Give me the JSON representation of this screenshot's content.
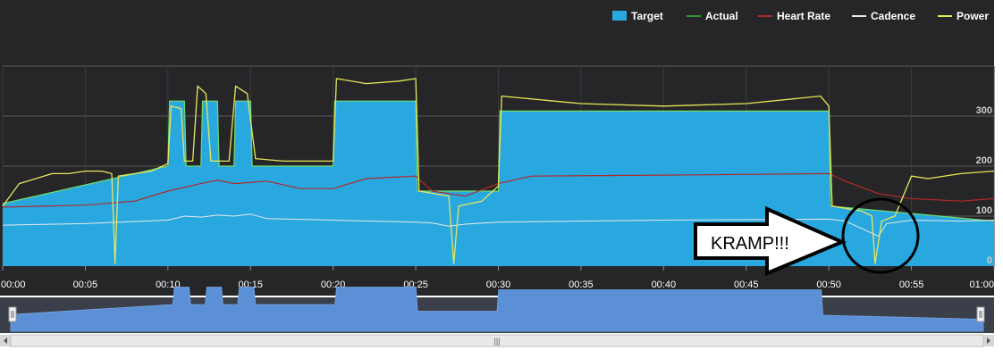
{
  "chart_data": {
    "type": "line",
    "legend": {
      "placement": "top-right",
      "entries": [
        {
          "name": "Target",
          "color": "#29a8e0",
          "style": "box"
        },
        {
          "name": "Actual",
          "color": "#2e9a2e",
          "style": "line"
        },
        {
          "name": "Heart Rate",
          "color": "#b02a2a",
          "style": "line"
        },
        {
          "name": "Cadence",
          "color": "#e8e8e8",
          "style": "line"
        },
        {
          "name": "Power",
          "color": "#e6e65a",
          "style": "line"
        }
      ]
    },
    "x_ticks": [
      "00:00",
      "00:05",
      "00:10",
      "00:15",
      "00:20",
      "00:25",
      "00:30",
      "00:35",
      "00:40",
      "00:45",
      "00:50",
      "00:55",
      "01:00"
    ],
    "xlim": [
      0,
      60
    ],
    "y_ticks": [
      {
        "value": 0,
        "label": "0"
      },
      {
        "value": 100,
        "label": "100"
      },
      {
        "value": 200,
        "label": "200"
      },
      {
        "value": 300,
        "label": "300"
      }
    ],
    "ylim": [
      0,
      400
    ],
    "grid": true,
    "target_series": {
      "name": "Target",
      "points": [
        [
          0,
          125
        ],
        [
          10,
          200
        ],
        [
          10,
          200
        ],
        [
          10.1,
          330
        ],
        [
          11,
          330
        ],
        [
          11.1,
          200
        ],
        [
          12,
          200
        ],
        [
          12.1,
          330
        ],
        [
          13,
          330
        ],
        [
          13.1,
          200
        ],
        [
          14,
          200
        ],
        [
          14.1,
          330
        ],
        [
          15,
          330
        ],
        [
          15.1,
          200
        ],
        [
          20,
          200
        ],
        [
          20.1,
          330
        ],
        [
          25,
          330
        ],
        [
          25.1,
          150
        ],
        [
          30,
          150
        ],
        [
          30.1,
          310
        ],
        [
          50,
          310
        ],
        [
          50.1,
          120
        ],
        [
          60,
          90
        ]
      ]
    },
    "power_series": {
      "name": "Power",
      "points": [
        [
          0,
          120
        ],
        [
          1,
          165
        ],
        [
          2,
          175
        ],
        [
          3,
          185
        ],
        [
          4,
          185
        ],
        [
          5,
          190
        ],
        [
          6,
          190
        ],
        [
          6.6,
          185
        ],
        [
          6.8,
          5
        ],
        [
          7,
          180
        ],
        [
          8,
          185
        ],
        [
          9,
          190
        ],
        [
          10,
          205
        ],
        [
          10.2,
          320
        ],
        [
          10.8,
          315
        ],
        [
          11,
          210
        ],
        [
          11.5,
          210
        ],
        [
          11.8,
          360
        ],
        [
          12.3,
          345
        ],
        [
          12.6,
          210
        ],
        [
          13,
          210
        ],
        [
          13.7,
          210
        ],
        [
          14.1,
          360
        ],
        [
          14.8,
          345
        ],
        [
          15.3,
          215
        ],
        [
          17,
          210
        ],
        [
          19,
          210
        ],
        [
          20,
          210
        ],
        [
          20.2,
          375
        ],
        [
          22,
          365
        ],
        [
          24,
          370
        ],
        [
          25,
          375
        ],
        [
          25.2,
          150
        ],
        [
          27,
          140
        ],
        [
          27.3,
          5
        ],
        [
          27.6,
          120
        ],
        [
          29,
          130
        ],
        [
          30,
          160
        ],
        [
          30.2,
          340
        ],
        [
          35,
          325
        ],
        [
          40,
          320
        ],
        [
          45,
          325
        ],
        [
          49.5,
          340
        ],
        [
          50,
          320
        ],
        [
          50.2,
          120
        ],
        [
          52,
          110
        ],
        [
          52.6,
          100
        ],
        [
          52.8,
          5
        ],
        [
          53.2,
          90
        ],
        [
          54,
          100
        ],
        [
          55,
          180
        ],
        [
          56,
          175
        ],
        [
          58,
          185
        ],
        [
          60,
          190
        ]
      ]
    },
    "heart_rate_series": {
      "name": "Heart Rate",
      "points": [
        [
          0,
          118
        ],
        [
          5,
          122
        ],
        [
          8,
          130
        ],
        [
          10,
          150
        ],
        [
          12,
          165
        ],
        [
          13,
          172
        ],
        [
          14,
          165
        ],
        [
          16,
          170
        ],
        [
          18,
          155
        ],
        [
          20,
          155
        ],
        [
          22,
          175
        ],
        [
          25,
          180
        ],
        [
          26,
          150
        ],
        [
          27,
          145
        ],
        [
          28,
          140
        ],
        [
          30,
          165
        ],
        [
          32,
          180
        ],
        [
          40,
          182
        ],
        [
          50,
          185
        ],
        [
          51,
          170
        ],
        [
          53,
          145
        ],
        [
          55,
          135
        ],
        [
          58,
          130
        ],
        [
          60,
          135
        ]
      ]
    },
    "cadence_series": {
      "name": "Cadence",
      "points": [
        [
          0,
          82
        ],
        [
          5,
          85
        ],
        [
          10,
          92
        ],
        [
          11,
          100
        ],
        [
          12,
          98
        ],
        [
          13,
          102
        ],
        [
          14,
          100
        ],
        [
          15,
          104
        ],
        [
          16,
          95
        ],
        [
          20,
          92
        ],
        [
          25,
          88
        ],
        [
          26,
          86
        ],
        [
          27,
          80
        ],
        [
          28,
          84
        ],
        [
          30,
          88
        ],
        [
          40,
          92
        ],
        [
          50,
          94
        ],
        [
          51,
          90
        ],
        [
          53,
          60
        ],
        [
          53.5,
          85
        ],
        [
          55,
          92
        ],
        [
          58,
          90
        ],
        [
          60,
          92
        ]
      ]
    },
    "annotation": {
      "text": "KRAMP!!!",
      "x": 53,
      "y": 35
    }
  },
  "navigator": {
    "scroll_label": "|||"
  }
}
